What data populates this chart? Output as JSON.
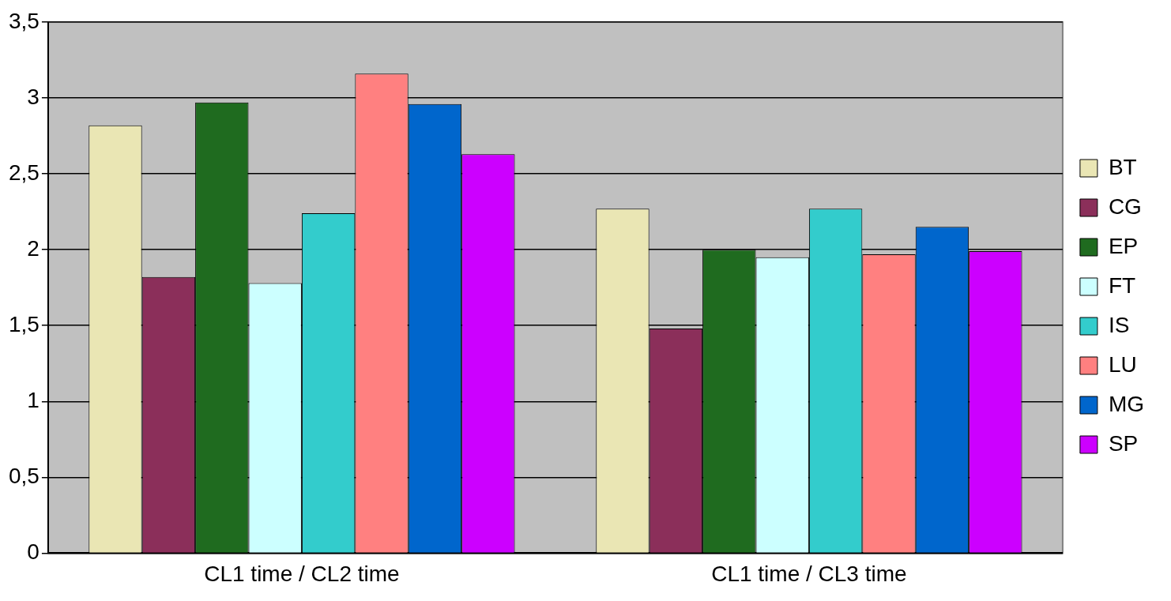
{
  "chart_data": {
    "type": "bar",
    "categories": [
      "CL1 time / CL2 time",
      "CL1 time / CL3 time"
    ],
    "series": [
      {
        "name": "BT",
        "color": "#eae6b4",
        "values": [
          2.82,
          2.27
        ]
      },
      {
        "name": "CG",
        "color": "#8b2f5a",
        "values": [
          1.82,
          1.48
        ]
      },
      {
        "name": "EP",
        "color": "#1f6b1f",
        "values": [
          2.97,
          2.0
        ]
      },
      {
        "name": "FT",
        "color": "#ccffff",
        "values": [
          1.78,
          1.95
        ]
      },
      {
        "name": "IS",
        "color": "#33cccc",
        "values": [
          2.24,
          2.27
        ]
      },
      {
        "name": "LU",
        "color": "#ff8080",
        "values": [
          3.16,
          1.97
        ]
      },
      {
        "name": "MG",
        "color": "#0066cc",
        "values": [
          2.96,
          2.15
        ]
      },
      {
        "name": "SP",
        "color": "#cc00ff",
        "values": [
          2.63,
          1.99
        ]
      }
    ],
    "ylim": [
      0,
      3.5
    ],
    "yticks": [
      0,
      {
        "value": 0.5,
        "label": "0,5"
      },
      1,
      {
        "value": 1.5,
        "label": "1,5"
      },
      2,
      {
        "value": 2.5,
        "label": "2,5"
      },
      3,
      {
        "value": 3.5,
        "label": "3,5"
      }
    ],
    "grid": "y",
    "legend": "right"
  }
}
